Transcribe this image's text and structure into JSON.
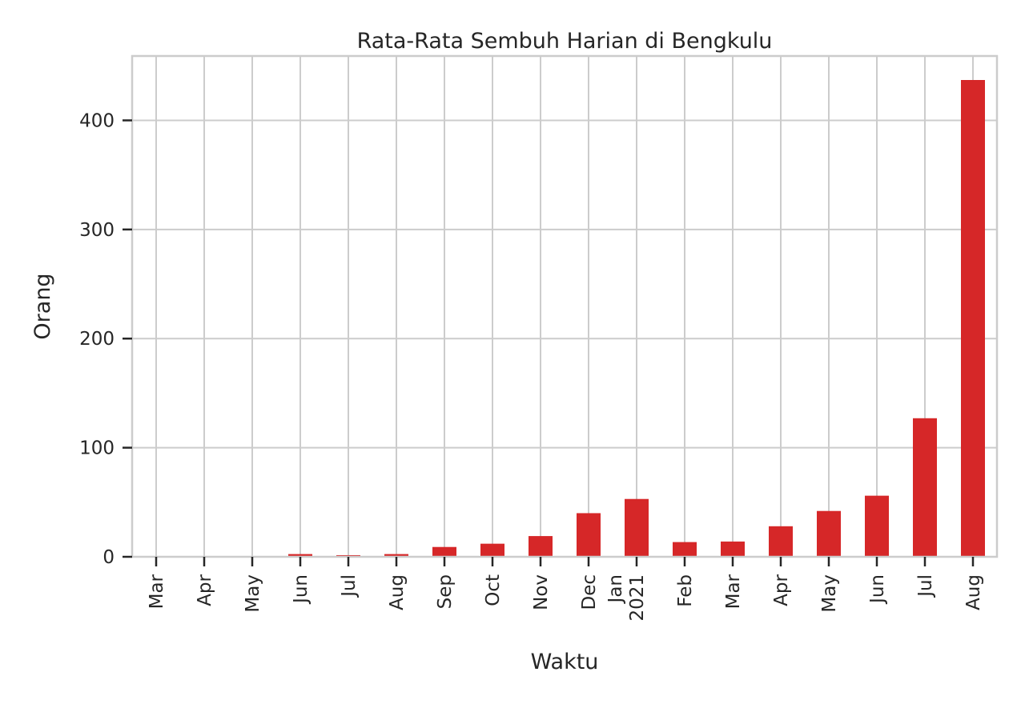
{
  "chart_data": {
    "type": "bar",
    "title": "Rata-Rata Sembuh Harian di Bengkulu",
    "xlabel": "Waktu",
    "ylabel": "Orang",
    "categories": [
      "Mar",
      "Apr",
      "May",
      "Jun",
      "Jul",
      "Aug",
      "Sep",
      "Oct",
      "Nov",
      "Dec",
      "Jan\n2021",
      "Feb",
      "Mar",
      "Apr",
      "May",
      "Jun",
      "Jul",
      "Aug"
    ],
    "values": [
      0.0,
      0.2,
      0.3,
      2.5,
      1.5,
      2.5,
      9.0,
      12.0,
      19.0,
      40.0,
      53.0,
      13.5,
      14.0,
      28.0,
      42.0,
      56.0,
      127.0,
      437.0
    ],
    "yticks": [
      0,
      100,
      200,
      300,
      400
    ],
    "ylim": [
      0,
      459
    ],
    "grid": true,
    "legend": "none",
    "colors": {
      "bar": "#d62728",
      "grid": "#cccccc",
      "text": "#262626"
    }
  }
}
